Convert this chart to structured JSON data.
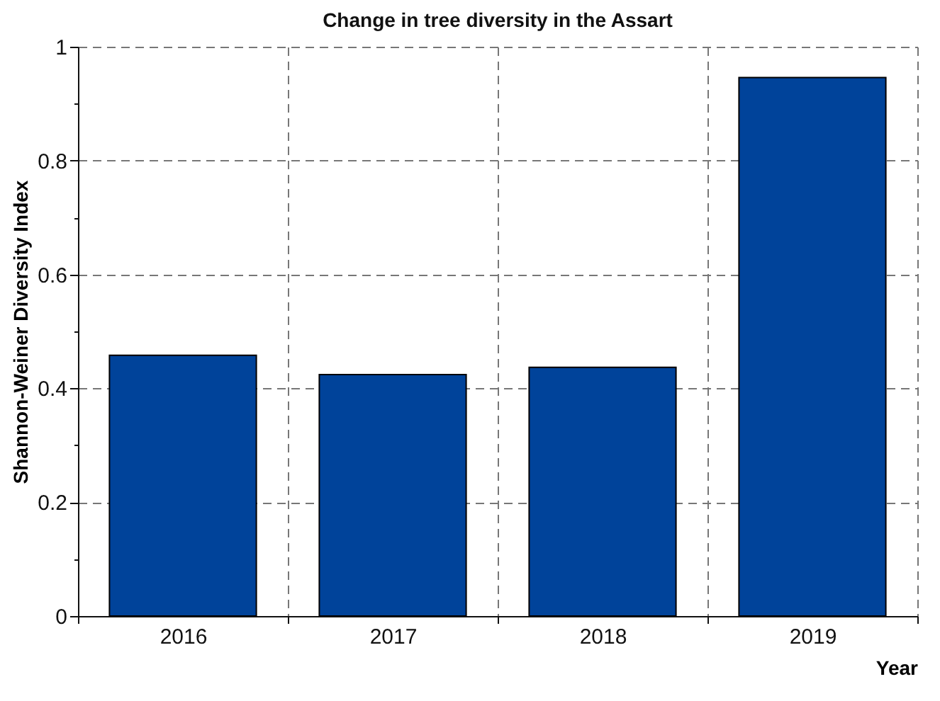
{
  "chart_data": {
    "type": "bar",
    "title": "Change in tree diversity in the Assart",
    "xlabel": "Year",
    "ylabel": "Shannon-Weiner Diversity Index",
    "categories": [
      "2016",
      "2017",
      "2018",
      "2019"
    ],
    "values": [
      0.458,
      0.424,
      0.437,
      0.946
    ],
    "color": "#00439a",
    "ylim": [
      0,
      1
    ],
    "yticks": [
      0,
      {
        "value": 0.1,
        "label": null
      },
      0.2,
      {
        "value": 0.3,
        "label": null
      },
      0.4,
      {
        "value": 0.5,
        "label": null
      },
      0.6,
      {
        "value": 0.7,
        "label": null
      },
      0.8,
      {
        "value": 0.9,
        "label": null
      },
      1
    ],
    "grid": true
  }
}
